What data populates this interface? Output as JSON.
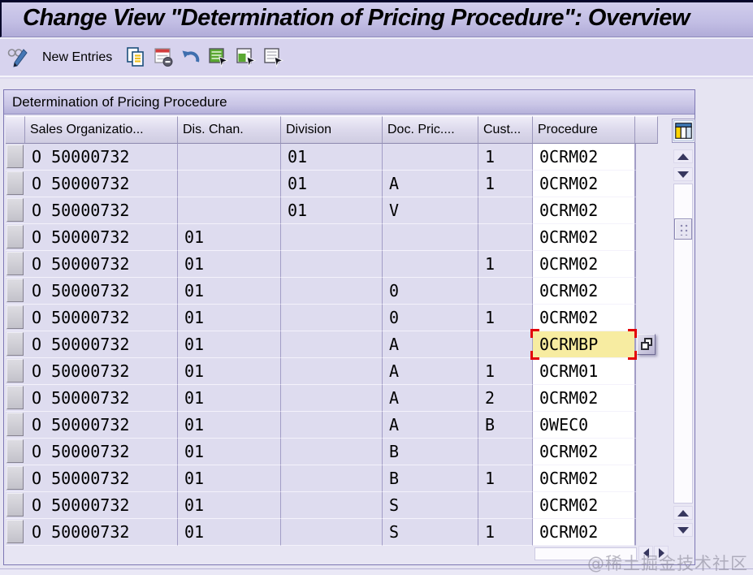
{
  "title_bar": {
    "title": "Change View \"Determination of Pricing Procedure\": Overview"
  },
  "toolbar": {
    "new_entries_label": "New Entries",
    "icons": [
      "display-change",
      "copy-as",
      "delete",
      "undo",
      "select-all",
      "select-block",
      "deselect-all"
    ]
  },
  "group_box": {
    "caption": "Determination of Pricing Procedure",
    "columns": [
      {
        "key": "sales_org",
        "label": "Sales Organizatio..."
      },
      {
        "key": "dis_chan",
        "label": "Dis. Chan."
      },
      {
        "key": "division",
        "label": "Division"
      },
      {
        "key": "doc_pric",
        "label": "Doc. Pric...."
      },
      {
        "key": "cust",
        "label": "Cust..."
      },
      {
        "key": "procedure",
        "label": "Procedure"
      }
    ],
    "rows": [
      {
        "sales_org": "O 50000732",
        "dis_chan": "",
        "division": "01",
        "doc_pric": "",
        "cust": "1",
        "procedure": "0CRM02"
      },
      {
        "sales_org": "O 50000732",
        "dis_chan": "",
        "division": "01",
        "doc_pric": "A",
        "cust": "1",
        "procedure": "0CRM02"
      },
      {
        "sales_org": "O 50000732",
        "dis_chan": "",
        "division": "01",
        "doc_pric": "V",
        "cust": "",
        "procedure": "0CRM02"
      },
      {
        "sales_org": "O 50000732",
        "dis_chan": "01",
        "division": "",
        "doc_pric": "",
        "cust": "",
        "procedure": "0CRM02"
      },
      {
        "sales_org": "O 50000732",
        "dis_chan": "01",
        "division": "",
        "doc_pric": "",
        "cust": "1",
        "procedure": "0CRM02"
      },
      {
        "sales_org": "O 50000732",
        "dis_chan": "01",
        "division": "",
        "doc_pric": "0",
        "cust": "",
        "procedure": "0CRM02"
      },
      {
        "sales_org": "O 50000732",
        "dis_chan": "01",
        "division": "",
        "doc_pric": "0",
        "cust": "1",
        "procedure": "0CRM02"
      },
      {
        "sales_org": "O 50000732",
        "dis_chan": "01",
        "division": "",
        "doc_pric": "A",
        "cust": "",
        "procedure": "0CRMBP"
      },
      {
        "sales_org": "O 50000732",
        "dis_chan": "01",
        "division": "",
        "doc_pric": "A",
        "cust": "1",
        "procedure": "0CRM01"
      },
      {
        "sales_org": "O 50000732",
        "dis_chan": "01",
        "division": "",
        "doc_pric": "A",
        "cust": "2",
        "procedure": "0CRM02"
      },
      {
        "sales_org": "O 50000732",
        "dis_chan": "01",
        "division": "",
        "doc_pric": "A",
        "cust": "B",
        "procedure": "0WEC0"
      },
      {
        "sales_org": "O 50000732",
        "dis_chan": "01",
        "division": "",
        "doc_pric": "B",
        "cust": "",
        "procedure": "0CRM02"
      },
      {
        "sales_org": "O 50000732",
        "dis_chan": "01",
        "division": "",
        "doc_pric": "B",
        "cust": "1",
        "procedure": "0CRM02"
      },
      {
        "sales_org": "O 50000732",
        "dis_chan": "01",
        "division": "",
        "doc_pric": "S",
        "cust": "",
        "procedure": "0CRM02"
      },
      {
        "sales_org": "O 50000732",
        "dis_chan": "01",
        "division": "",
        "doc_pric": "S",
        "cust": "1",
        "procedure": "0CRM02"
      }
    ],
    "selected_cell": {
      "row_index": 7,
      "column": "procedure",
      "value": "0CRMBP"
    }
  },
  "watermark": "@稀土掘金技术社区",
  "colors": {
    "selection_fill": "#f7eca1",
    "selection_border": "#e3000a",
    "row_fill": "#dedcef",
    "accent_green": "#5aa832"
  }
}
